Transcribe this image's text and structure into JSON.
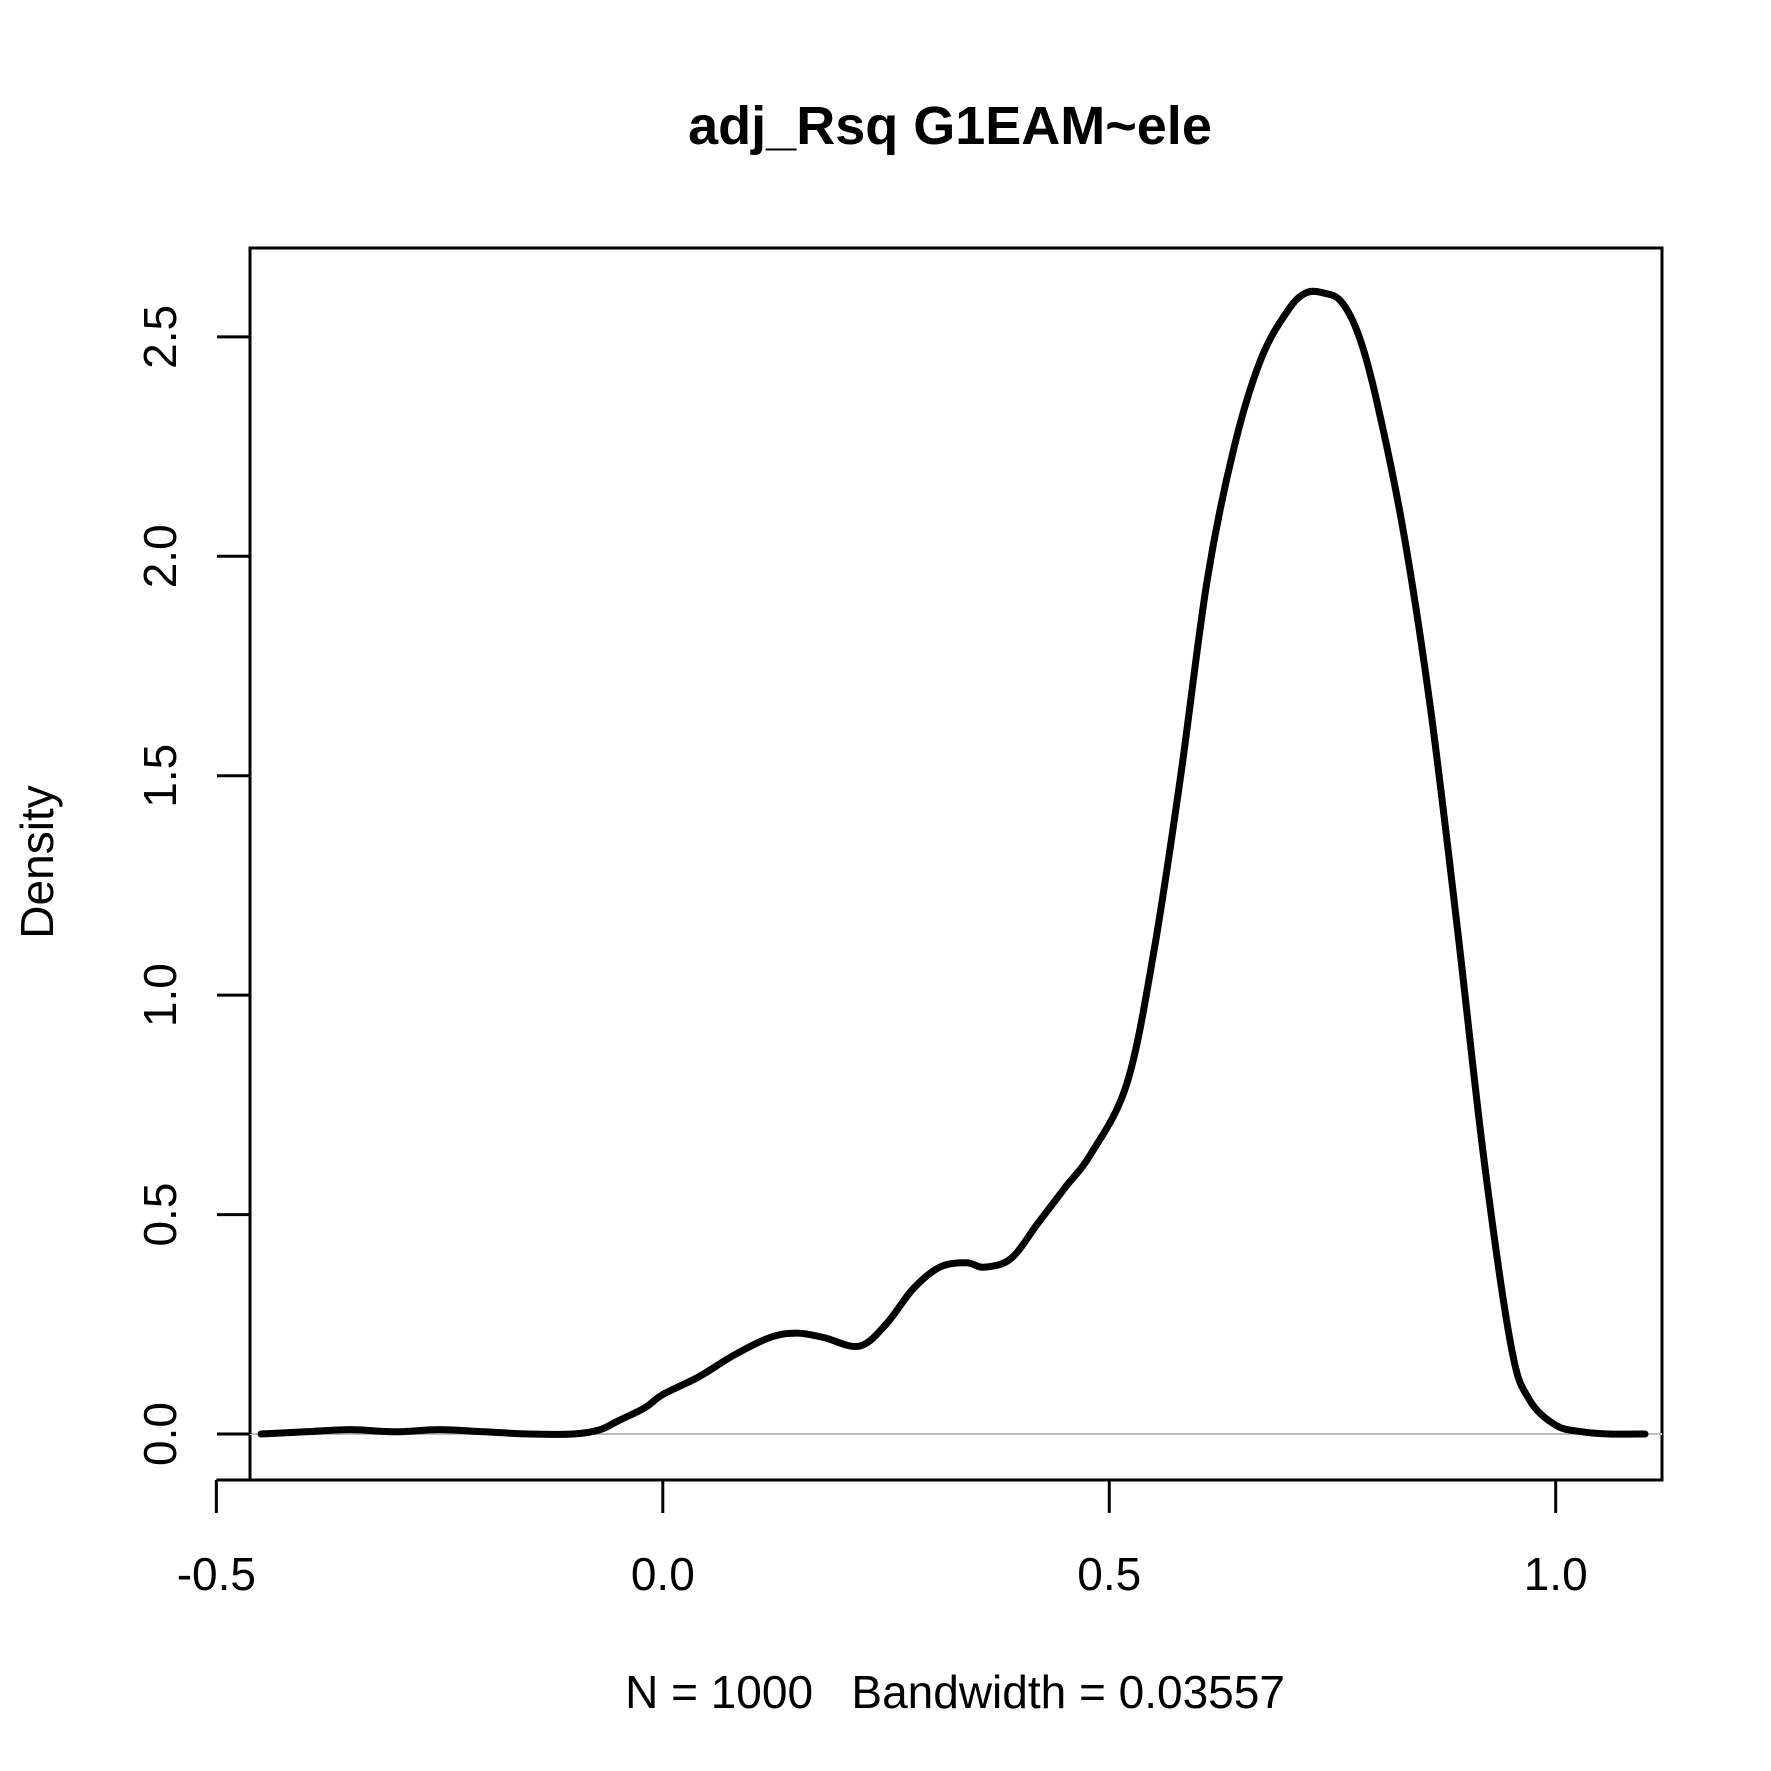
{
  "chart_data": {
    "type": "line",
    "title": "adj_Rsq G1EAM~ele",
    "xlabel": "N = 1000   Bandwidth = 0.03557",
    "ylabel": "Density",
    "xlim": [
      -0.5,
      1.15
    ],
    "ylim": [
      0,
      2.6
    ],
    "x_ticks": [
      -0.5,
      0.0,
      0.5,
      1.0
    ],
    "x_tick_labels": [
      "-0.5",
      "0.0",
      "0.5",
      "1.0"
    ],
    "y_ticks": [
      0.0,
      0.5,
      1.0,
      1.5,
      2.0,
      2.5
    ],
    "y_tick_labels": [
      "0.0",
      "0.5",
      "1.0",
      "1.5",
      "2.0",
      "2.5"
    ],
    "baseline": 0,
    "colors": {
      "line": "#000000",
      "baseline": "#bebebe",
      "frame": "#000000"
    },
    "series": [
      {
        "x": [
          -0.45,
          -0.4,
          -0.35,
          -0.3,
          -0.25,
          -0.2,
          -0.15,
          -0.1,
          -0.07,
          -0.05,
          -0.02,
          0.0,
          0.04,
          0.08,
          0.12,
          0.15,
          0.18,
          0.22,
          0.25,
          0.28,
          0.31,
          0.34,
          0.36,
          0.39,
          0.42,
          0.45,
          0.48,
          0.52,
          0.55,
          0.58,
          0.61,
          0.64,
          0.67,
          0.7,
          0.72,
          0.74,
          0.76,
          0.78,
          0.8,
          0.83,
          0.86,
          0.89,
          0.92,
          0.95,
          0.97,
          1.0,
          1.03,
          1.06,
          1.1
        ],
        "y": [
          0.0,
          0.005,
          0.01,
          0.005,
          0.01,
          0.005,
          0.0,
          0.0,
          0.01,
          0.03,
          0.06,
          0.09,
          0.13,
          0.18,
          0.22,
          0.23,
          0.22,
          0.2,
          0.25,
          0.33,
          0.38,
          0.39,
          0.38,
          0.4,
          0.48,
          0.56,
          0.64,
          0.8,
          1.1,
          1.5,
          1.95,
          2.25,
          2.45,
          2.56,
          2.6,
          2.6,
          2.58,
          2.5,
          2.35,
          2.05,
          1.65,
          1.15,
          0.62,
          0.2,
          0.08,
          0.02,
          0.005,
          0.0,
          0.0
        ]
      }
    ]
  }
}
